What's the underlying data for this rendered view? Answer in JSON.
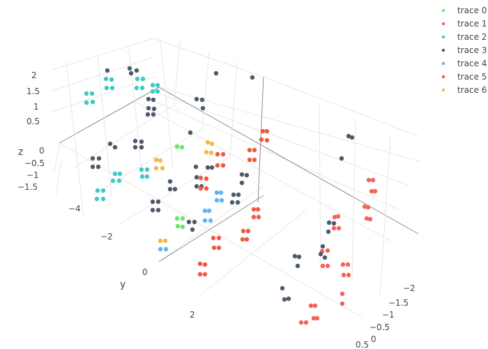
{
  "chart_data": {
    "type": "scatter3d",
    "axes": {
      "x": {
        "title": "",
        "ticks": [
          "−2",
          "−1.5",
          "−1",
          "−0.5",
          "0",
          "0.5"
        ]
      },
      "y": {
        "title": "y",
        "ticks": [
          "−4",
          "−2",
          "0",
          "2"
        ]
      },
      "z": {
        "title": "z",
        "ticks": [
          "−1.5",
          "−1",
          "−0.5",
          "0",
          "0.5",
          "1",
          "1.5",
          "2"
        ]
      }
    },
    "grid": true,
    "legend_position": "top-right",
    "series": [
      {
        "name": "trace 0",
        "color": "#66e86a",
        "points": [
          [
            254,
            210
          ],
          [
            261,
            211
          ],
          [
            254,
            313
          ],
          [
            262,
            313
          ],
          [
            255,
            324
          ],
          [
            262,
            325
          ]
        ]
      },
      {
        "name": "trace 1",
        "color": "#f8615c",
        "points": [
          [
            529,
            258
          ],
          [
            535,
            258
          ],
          [
            533,
            274
          ],
          [
            538,
            274
          ],
          [
            523,
            296
          ],
          [
            528,
            297
          ],
          [
            526,
            313
          ],
          [
            531,
            314
          ],
          [
            480,
            311
          ],
          [
            485,
            310
          ],
          [
            479,
            327
          ],
          [
            486,
            327
          ],
          [
            462,
            360
          ],
          [
            470,
            359
          ],
          [
            463,
            381
          ],
          [
            470,
            381
          ],
          [
            492,
            379
          ],
          [
            499,
            379
          ],
          [
            493,
            394
          ],
          [
            500,
            394
          ],
          [
            491,
            421
          ],
          [
            491,
            435
          ],
          [
            446,
            438
          ],
          [
            452,
            438
          ],
          [
            450,
            456
          ],
          [
            455,
            456
          ],
          [
            432,
            462
          ],
          [
            439,
            462
          ]
        ]
      },
      {
        "name": "trace 2",
        "color": "#3fc9c4",
        "points": [
          [
            124,
            134
          ],
          [
            132,
            134
          ],
          [
            124,
            147
          ],
          [
            133,
            146
          ],
          [
            152,
            113
          ],
          [
            160,
            114
          ],
          [
            153,
            126
          ],
          [
            161,
            126
          ],
          [
            197,
            113
          ],
          [
            205,
            113
          ],
          [
            196,
            126
          ],
          [
            204,
            126
          ],
          [
            219,
            122
          ],
          [
            226,
            122
          ],
          [
            219,
            131
          ],
          [
            226,
            131
          ],
          [
            165,
            249
          ],
          [
            172,
            249
          ],
          [
            162,
            259
          ],
          [
            171,
            259
          ],
          [
            203,
            243
          ],
          [
            211,
            243
          ],
          [
            204,
            253
          ],
          [
            211,
            253
          ],
          [
            140,
            273
          ],
          [
            148,
            273
          ],
          [
            139,
            285
          ],
          [
            148,
            285
          ]
        ]
      },
      {
        "name": "trace 3",
        "color": "#4d5a6a",
        "points": [
          [
            154,
            101
          ],
          [
            186,
            98
          ],
          [
            196,
            101
          ],
          [
            188,
            105
          ],
          [
            213,
            142
          ],
          [
            220,
            143
          ],
          [
            213,
            155
          ],
          [
            221,
            156
          ],
          [
            212,
            164
          ],
          [
            220,
            164
          ],
          [
            194,
            202
          ],
          [
            203,
            203
          ],
          [
            194,
            211
          ],
          [
            203,
            211
          ],
          [
            158,
            206
          ],
          [
            165,
            211
          ],
          [
            133,
            227
          ],
          [
            142,
            227
          ],
          [
            133,
            239
          ],
          [
            141,
            239
          ],
          [
            244,
            260
          ],
          [
            244,
            271
          ],
          [
            251,
            271
          ],
          [
            219,
            289
          ],
          [
            227,
            289
          ],
          [
            219,
            301
          ],
          [
            227,
            301
          ],
          [
            271,
            318
          ],
          [
            279,
            318
          ],
          [
            276,
            329
          ],
          [
            281,
            239
          ],
          [
            298,
            240
          ],
          [
            304,
            240
          ],
          [
            282,
            254
          ],
          [
            282,
            267
          ],
          [
            289,
            267
          ],
          [
            335,
            279
          ],
          [
            342,
            279
          ],
          [
            333,
            290
          ],
          [
            341,
            290
          ],
          [
            347,
            250
          ],
          [
            354,
            251
          ],
          [
            347,
            262
          ],
          [
            273,
            190
          ],
          [
            282,
            142
          ],
          [
            290,
            143
          ],
          [
            291,
            155
          ],
          [
            310,
            105
          ],
          [
            362,
            111
          ],
          [
            500,
            195
          ],
          [
            505,
            197
          ],
          [
            490,
            227
          ],
          [
            423,
            367
          ],
          [
            429,
            368
          ],
          [
            427,
            381
          ],
          [
            463,
            353
          ],
          [
            460,
            364
          ],
          [
            466,
            369
          ],
          [
            472,
            319
          ],
          [
            479,
            320
          ],
          [
            471,
            332
          ],
          [
            405,
            413
          ],
          [
            408,
            429
          ],
          [
            414,
            428
          ]
        ]
      },
      {
        "name": "trace 4",
        "color": "#62b3f4",
        "points": [
          [
            311,
            276
          ],
          [
            317,
            276
          ],
          [
            311,
            287
          ],
          [
            318,
            287
          ],
          [
            294,
            302
          ],
          [
            300,
            302
          ],
          [
            294,
            316
          ],
          [
            302,
            316
          ],
          [
            230,
            357
          ],
          [
            238,
            357
          ]
        ]
      },
      {
        "name": "trace 5",
        "color": "#ef5b3f",
        "points": [
          [
            377,
            188
          ],
          [
            383,
            188
          ],
          [
            375,
            200
          ],
          [
            383,
            201
          ],
          [
            358,
            215
          ],
          [
            365,
            215
          ],
          [
            358,
            229
          ],
          [
            365,
            229
          ],
          [
            312,
            221
          ],
          [
            320,
            221
          ],
          [
            312,
            237
          ],
          [
            320,
            237
          ],
          [
            288,
            255
          ],
          [
            296,
            256
          ],
          [
            288,
            270
          ],
          [
            296,
            270
          ],
          [
            364,
            300
          ],
          [
            370,
            300
          ],
          [
            364,
            311
          ],
          [
            371,
            311
          ],
          [
            349,
            331
          ],
          [
            356,
            331
          ],
          [
            348,
            343
          ],
          [
            354,
            343
          ],
          [
            306,
            341
          ],
          [
            314,
            341
          ],
          [
            307,
            355
          ],
          [
            314,
            355
          ],
          [
            287,
            378
          ],
          [
            294,
            379
          ],
          [
            287,
            393
          ],
          [
            294,
            393
          ]
        ]
      },
      {
        "name": "trace 6",
        "color": "#f2b94a",
        "points": [
          [
            296,
            218
          ],
          [
            303,
            219
          ],
          [
            298,
            204
          ],
          [
            304,
            206
          ],
          [
            224,
            229
          ],
          [
            230,
            230
          ],
          [
            224,
            241
          ],
          [
            233,
            241
          ],
          [
            230,
            345
          ],
          [
            237,
            345
          ]
        ]
      }
    ]
  }
}
